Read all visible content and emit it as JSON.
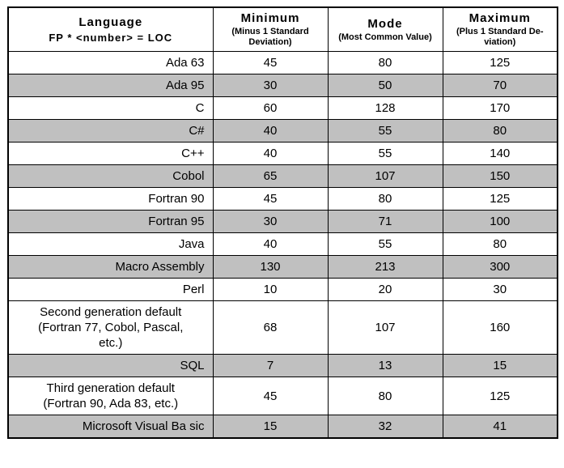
{
  "table": {
    "header": {
      "language_title": "Language",
      "language_sub": "FP * <number> = LOC",
      "min_title": "Minimum",
      "min_sub": "(Minus 1 Standard\nDeviation)",
      "mode_title": "Mode",
      "mode_sub": "(Most Common Value)",
      "max_title": "Maximum",
      "max_sub": "(Plus 1 Standard De-\nviation)"
    },
    "shade_color": "#c0c0c0",
    "rows": [
      {
        "language": "Ada 63",
        "min": "45",
        "mode": "80",
        "max": "125",
        "shaded": false,
        "multiline": false
      },
      {
        "language": "Ada 95",
        "min": "30",
        "mode": "50",
        "max": "70",
        "shaded": true,
        "multiline": false
      },
      {
        "language": "C",
        "min": "60",
        "mode": "128",
        "max": "170",
        "shaded": false,
        "multiline": false
      },
      {
        "language": "C#",
        "min": "40",
        "mode": "55",
        "max": "80",
        "shaded": true,
        "multiline": false
      },
      {
        "language": "C++",
        "min": "40",
        "mode": "55",
        "max": "140",
        "shaded": false,
        "multiline": false
      },
      {
        "language": "Cobol",
        "min": "65",
        "mode": "107",
        "max": "150",
        "shaded": true,
        "multiline": false
      },
      {
        "language": "Fortran 90",
        "min": "45",
        "mode": "80",
        "max": "125",
        "shaded": false,
        "multiline": false
      },
      {
        "language": "Fortran 95",
        "min": "30",
        "mode": "71",
        "max": "100",
        "shaded": true,
        "multiline": false
      },
      {
        "language": "Java",
        "min": "40",
        "mode": "55",
        "max": "80",
        "shaded": false,
        "multiline": false
      },
      {
        "language": "Macro Assembly",
        "min": "130",
        "mode": "213",
        "max": "300",
        "shaded": true,
        "multiline": false
      },
      {
        "language": "Perl",
        "min": "10",
        "mode": "20",
        "max": "30",
        "shaded": false,
        "multiline": false
      },
      {
        "language": "Second generation default\n(Fortran 77, Cobol, Pascal,\netc.)",
        "min": "68",
        "mode": "107",
        "max": "160",
        "shaded": false,
        "multiline": true
      },
      {
        "language": "SQL",
        "min": "7",
        "mode": "13",
        "max": "15",
        "shaded": true,
        "multiline": false
      },
      {
        "language": "Third generation default\n(Fortran 90, Ada 83, etc.)",
        "min": "45",
        "mode": "80",
        "max": "125",
        "shaded": false,
        "multiline": true
      },
      {
        "language": "Microsoft Visual Ba sic",
        "min": "15",
        "mode": "32",
        "max": "41",
        "shaded": true,
        "multiline": false
      }
    ]
  }
}
